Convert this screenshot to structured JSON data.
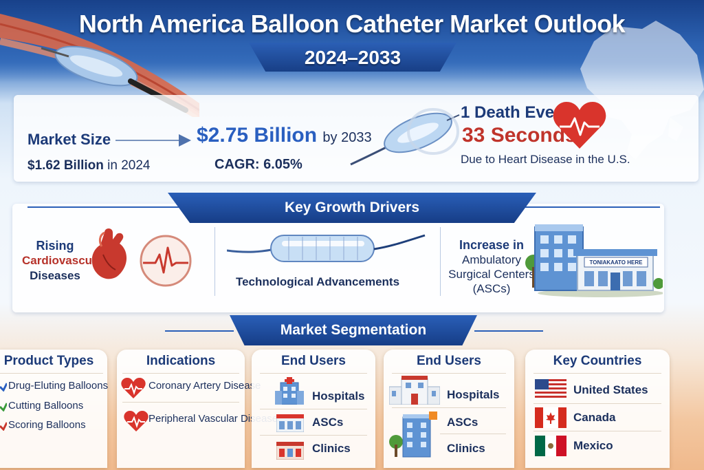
{
  "header": {
    "title": "North America Balloon Catheter Market Outlook",
    "period": "2024–2033"
  },
  "stats": {
    "market_size_label": "Market Size",
    "size_2024_value": "$1.62 Billion",
    "size_2024_suffix": "in 2024",
    "size_2033_value": "$2.75 Billion",
    "size_2033_suffix": "by 2033",
    "cagr": "CAGR: 6.05%",
    "death_line1": "1 Death Every",
    "death_line2": "33 Seconds",
    "death_line3": "Due to Heart Disease in the U.S."
  },
  "drivers": {
    "title": "Key Growth Drivers",
    "driver1": [
      "Rising",
      "Cardiovascular",
      "Diseases"
    ],
    "driver2": "Technological Advancements",
    "driver3": [
      "Increase in",
      "Ambulatory",
      "Surgical Centers",
      "(ASCs)"
    ],
    "building_sign": "TONIAKAATO HERE"
  },
  "segmentation": {
    "title": "Market Segmentation",
    "product_types": {
      "heading": "Product Types",
      "items": [
        "Drug-Eluting Balloons",
        "Cutting Balloons",
        "Scoring Balloons"
      ]
    },
    "indications": {
      "heading": "Indications",
      "items": [
        "Coronary Artery Disease",
        "Peripheral Vascular Disease"
      ]
    },
    "end_users_1": {
      "heading": "End Users",
      "items": [
        "Hospitals",
        "ASCs",
        "Clinics"
      ]
    },
    "end_users_2": {
      "heading": "End Users",
      "items": [
        "Hospitals",
        "ASCs",
        "Clinics"
      ]
    },
    "key_countries": {
      "heading": "Key Countries",
      "items": [
        "United States",
        "Canada",
        "Mexico"
      ]
    }
  },
  "colors": {
    "brand_blue": "#1c3a78",
    "ribbon_blue": "#2a5fb8",
    "accent_red": "#c0342b",
    "stat_blue": "#2a5fc0"
  },
  "icons": {
    "header": [
      "balloon-catheter-icon",
      "north-america-map-icon"
    ],
    "stats": [
      "arrow-right-icon",
      "balloon-catheter-icon",
      "heart-ecg-icon"
    ],
    "drivers": [
      "heart-organ-icon",
      "ecg-circle-icon",
      "balloon-catheter-icon",
      "hospital-buildings-icon"
    ],
    "product_types": [
      "blue-check-icon",
      "green-check-icon",
      "red-check-icon"
    ],
    "indications": [
      "heart-ecg-icon",
      "heart-ecg-icon"
    ],
    "end_users": [
      "hospital-icon",
      "asc-icon",
      "clinic-icon"
    ],
    "countries": [
      "us-flag-icon",
      "canada-flag-icon",
      "mexico-flag-icon"
    ]
  }
}
